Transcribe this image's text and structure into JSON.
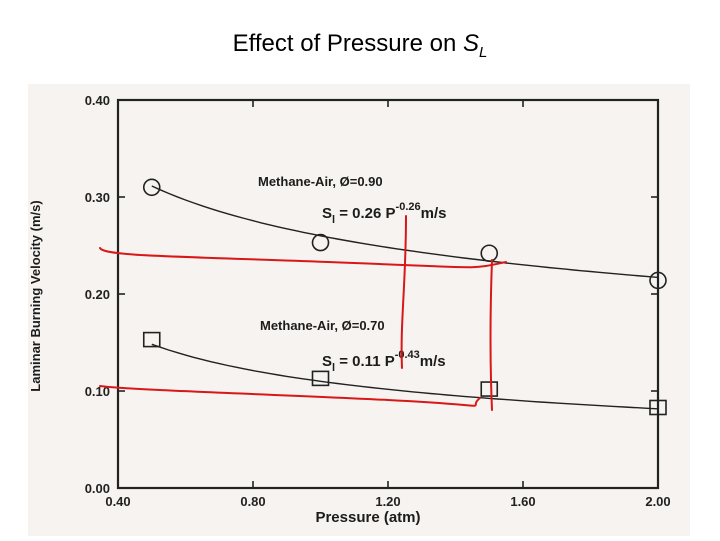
{
  "slide": {
    "title_text": "Effect of Pressure on ",
    "title_symbol": "S",
    "title_subscript": "L"
  },
  "chart_data": {
    "type": "scatter",
    "xlabel": "Pressure (atm)",
    "ylabel": "Laminar Burning Velocity (m/s)",
    "xlim": [
      0.4,
      2.0
    ],
    "ylim": [
      0.0,
      0.4
    ],
    "x_ticks": [
      "0.40",
      "0.80",
      "1.20",
      "1.60",
      "2.00"
    ],
    "y_ticks": [
      "0.00",
      "0.10",
      "0.20",
      "0.30",
      "0.40"
    ],
    "series": [
      {
        "name": "Methane-Air, Ø=0.90",
        "marker": "circle",
        "x": [
          0.5,
          1.0,
          1.5,
          2.0
        ],
        "y": [
          0.31,
          0.253,
          0.242,
          0.214
        ],
        "fit": {
          "coef": 0.26,
          "exp": -0.26
        }
      },
      {
        "name": "Methane-Air, Ø=0.70",
        "marker": "square",
        "x": [
          0.5,
          1.0,
          1.5,
          2.0
        ],
        "y": [
          0.153,
          0.113,
          0.102,
          0.083
        ],
        "fit": {
          "coef": 0.11,
          "exp": -0.43
        }
      }
    ],
    "annotations": {
      "eq1_lhs": "S",
      "eq1_sub": "l",
      "eq1_mid": " = 0.26  P",
      "eq1_exp": "-0.26",
      "eq1_unit": "m/s",
      "eq2_lhs": "S",
      "eq2_sub": "l",
      "eq2_mid": " = 0.11  P",
      "eq2_exp": "-0.43",
      "eq2_unit": "m/s"
    },
    "grid": false,
    "hand_markup_color": "#d81818"
  }
}
